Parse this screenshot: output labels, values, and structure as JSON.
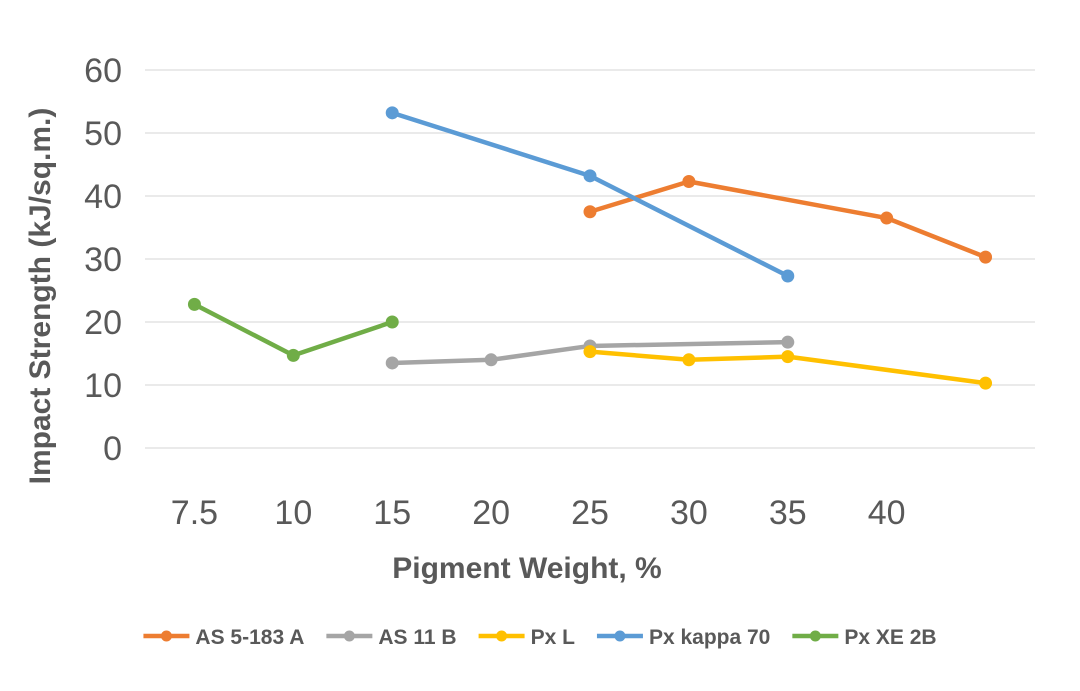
{
  "chart_data": {
    "type": "line",
    "categories": [
      "7.5",
      "10",
      "15",
      "20",
      "25",
      "30",
      "35",
      "40",
      ""
    ],
    "xlabel": "Pigment Weight, %",
    "ylabel": "Impact Strength (kJ/sq.m.)",
    "ylim": [
      0,
      60
    ],
    "yticks": [
      "0",
      "10",
      "20",
      "30",
      "40",
      "50",
      "60"
    ],
    "grid": true,
    "legend_position": "bottom",
    "series": [
      {
        "name": "AS 5-183 A",
        "color": "#ed7d31",
        "values": [
          null,
          null,
          null,
          null,
          37.5,
          42.3,
          null,
          36.5,
          30.3
        ]
      },
      {
        "name": "AS 11 B",
        "color": "#a5a5a5",
        "values": [
          null,
          null,
          13.5,
          14.0,
          16.2,
          null,
          16.8,
          null,
          null
        ]
      },
      {
        "name": "Px L",
        "color": "#ffc000",
        "values": [
          null,
          null,
          null,
          null,
          15.3,
          14.0,
          14.5,
          null,
          10.3
        ]
      },
      {
        "name": "Px kappa 70",
        "color": "#5b9bd5",
        "values": [
          null,
          null,
          53.2,
          null,
          43.2,
          null,
          27.3,
          null,
          null
        ]
      },
      {
        "name": "Px XE 2B",
        "color": "#70ad47",
        "values": [
          22.8,
          14.7,
          20.0,
          null,
          null,
          null,
          null,
          null,
          null
        ]
      }
    ]
  }
}
